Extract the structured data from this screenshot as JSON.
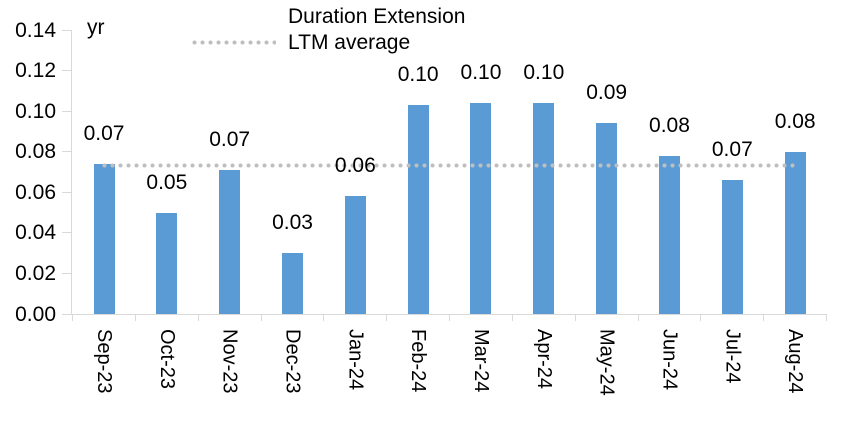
{
  "colors": {
    "bar": "#5B9BD5",
    "dotted_line": "#BFBFBF",
    "axis": "#D9D9D9",
    "text": "#000000",
    "background": "#FFFFFF"
  },
  "legend": {
    "items": [
      {
        "label": "Duration Extension",
        "swatch": "bar-swatch"
      },
      {
        "label": "LTM average",
        "swatch": "dotted-line-swatch"
      }
    ]
  },
  "chart_data": {
    "type": "bar",
    "title": "",
    "xlabel": "",
    "ylabel": "yr",
    "categories": [
      "Sep-23",
      "Oct-23",
      "Nov-23",
      "Dec-23",
      "Jan-24",
      "Feb-24",
      "Mar-24",
      "Apr-24",
      "May-24",
      "Jun-24",
      "Jul-24",
      "Aug-24"
    ],
    "series": [
      {
        "name": "Duration Extension",
        "values": [
          0.074,
          0.05,
          0.071,
          0.03,
          0.058,
          0.103,
          0.104,
          0.104,
          0.094,
          0.078,
          0.066,
          0.08
        ],
        "data_labels": [
          "0.07",
          "0.05",
          "0.07",
          "0.03",
          "0.06",
          "0.10",
          "0.10",
          "0.10",
          "0.09",
          "0.08",
          "0.07",
          "0.08"
        ]
      }
    ],
    "average_line": {
      "name": "LTM average",
      "value": 0.073,
      "style": "dotted"
    },
    "ylim": [
      0,
      0.14
    ],
    "ytick_step": 0.02,
    "ytick_labels": [
      "0.00",
      "0.02",
      "0.04",
      "0.06",
      "0.08",
      "0.10",
      "0.12",
      "0.14"
    ],
    "grid": false,
    "legend_position": "top",
    "x_label_rotation": "90-degrees-clockwise"
  }
}
